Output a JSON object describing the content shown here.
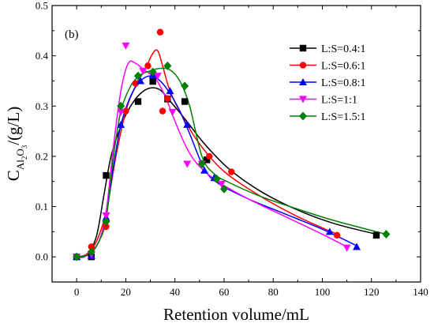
{
  "chart_data": {
    "type": "line",
    "panel_label": "(b)",
    "xlabel": "Retention volume/mL",
    "ylabel_prefix": "C",
    "ylabel_sub": "Al",
    "ylabel_sub2": "2",
    "ylabel_sub3": "O",
    "ylabel_sub4": "3",
    "ylabel_suffix": "/(g/L)",
    "xlim": [
      -10,
      140
    ],
    "ylim": [
      -0.05,
      0.5
    ],
    "xticks": [
      "0",
      "20",
      "40",
      "60",
      "80",
      "100",
      "120",
      "140"
    ],
    "yticks": [
      "0.0",
      "0.1",
      "0.2",
      "0.3",
      "0.4",
      "0.5"
    ],
    "legend_position": "top-right",
    "series": [
      {
        "name": "L:S=0.4:1",
        "color": "#000000",
        "marker": "square",
        "points": [
          [
            0,
            0.0
          ],
          [
            6,
            0.0
          ],
          [
            12,
            0.162
          ],
          [
            25,
            0.309
          ],
          [
            31,
            0.349
          ],
          [
            37,
            0.314
          ],
          [
            44,
            0.309
          ],
          [
            53,
            0.193
          ],
          [
            122,
            0.043
          ]
        ],
        "curve": [
          [
            0,
            0.0
          ],
          [
            4,
            0.003
          ],
          [
            8,
            0.04
          ],
          [
            11,
            0.12
          ],
          [
            14,
            0.2
          ],
          [
            18,
            0.26
          ],
          [
            22,
            0.3
          ],
          [
            26,
            0.325
          ],
          [
            30,
            0.336
          ],
          [
            34,
            0.332
          ],
          [
            38,
            0.31
          ],
          [
            44,
            0.275
          ],
          [
            52,
            0.225
          ],
          [
            62,
            0.175
          ],
          [
            75,
            0.13
          ],
          [
            90,
            0.093
          ],
          [
            105,
            0.066
          ],
          [
            122,
            0.045
          ]
        ]
      },
      {
        "name": "L:S=0.6:1",
        "color": "#ff0000",
        "marker": "circle",
        "points": [
          [
            0,
            0.0
          ],
          [
            6,
            0.02
          ],
          [
            12,
            0.06
          ],
          [
            20,
            0.29
          ],
          [
            24,
            0.345
          ],
          [
            29,
            0.38
          ],
          [
            34,
            0.447
          ],
          [
            35,
            0.29
          ],
          [
            37,
            0.315
          ],
          [
            54,
            0.2
          ],
          [
            63,
            0.169
          ],
          [
            106,
            0.043
          ]
        ],
        "curve": [
          [
            0,
            0.0
          ],
          [
            4,
            0.005
          ],
          [
            8,
            0.03
          ],
          [
            12,
            0.09
          ],
          [
            16,
            0.2
          ],
          [
            20,
            0.29
          ],
          [
            24,
            0.34
          ],
          [
            28,
            0.375
          ],
          [
            31,
            0.405
          ],
          [
            33,
            0.41
          ],
          [
            35,
            0.38
          ],
          [
            38,
            0.33
          ],
          [
            43,
            0.28
          ],
          [
            50,
            0.225
          ],
          [
            60,
            0.17
          ],
          [
            75,
            0.12
          ],
          [
            90,
            0.08
          ],
          [
            106,
            0.045
          ]
        ]
      },
      {
        "name": "L:S=0.8:1",
        "color": "#0000ff",
        "marker": "triangle-up",
        "points": [
          [
            0,
            0.0
          ],
          [
            6,
            0.002
          ],
          [
            12,
            0.078
          ],
          [
            18,
            0.263
          ],
          [
            26,
            0.35
          ],
          [
            31,
            0.362
          ],
          [
            38,
            0.33
          ],
          [
            45,
            0.263
          ],
          [
            52,
            0.172
          ],
          [
            56,
            0.157
          ],
          [
            103,
            0.05
          ],
          [
            114,
            0.02
          ]
        ],
        "curve": [
          [
            0,
            0.0
          ],
          [
            5,
            0.005
          ],
          [
            9,
            0.03
          ],
          [
            12,
            0.08
          ],
          [
            15,
            0.18
          ],
          [
            18,
            0.262
          ],
          [
            22,
            0.32
          ],
          [
            26,
            0.35
          ],
          [
            30,
            0.36
          ],
          [
            34,
            0.35
          ],
          [
            38,
            0.325
          ],
          [
            42,
            0.29
          ],
          [
            46,
            0.245
          ],
          [
            52,
            0.175
          ],
          [
            58,
            0.145
          ],
          [
            70,
            0.115
          ],
          [
            85,
            0.085
          ],
          [
            100,
            0.055
          ],
          [
            114,
            0.022
          ]
        ]
      },
      {
        "name": "L:S=1:1",
        "color": "#ff00ff",
        "marker": "triangle-down",
        "points": [
          [
            0,
            0.0
          ],
          [
            6,
            0.005
          ],
          [
            12,
            0.082
          ],
          [
            18,
            0.288
          ],
          [
            20,
            0.42
          ],
          [
            27,
            0.37
          ],
          [
            33,
            0.36
          ],
          [
            39,
            0.288
          ],
          [
            45,
            0.185
          ],
          [
            51,
            0.185
          ],
          [
            59,
            0.145
          ],
          [
            110,
            0.018
          ]
        ],
        "curve": [
          [
            0,
            0.0
          ],
          [
            5,
            0.004
          ],
          [
            9,
            0.03
          ],
          [
            12,
            0.09
          ],
          [
            15,
            0.22
          ],
          [
            18,
            0.33
          ],
          [
            21,
            0.385
          ],
          [
            24,
            0.385
          ],
          [
            28,
            0.37
          ],
          [
            32,
            0.355
          ],
          [
            36,
            0.32
          ],
          [
            40,
            0.27
          ],
          [
            45,
            0.215
          ],
          [
            50,
            0.18
          ],
          [
            58,
            0.148
          ],
          [
            70,
            0.115
          ],
          [
            85,
            0.08
          ],
          [
            100,
            0.045
          ],
          [
            110,
            0.02
          ]
        ]
      },
      {
        "name": "L:S=1.5:1",
        "color": "#008000",
        "marker": "diamond",
        "points": [
          [
            0,
            0.0
          ],
          [
            6,
            0.01
          ],
          [
            12,
            0.07
          ],
          [
            18,
            0.3
          ],
          [
            25,
            0.36
          ],
          [
            31,
            0.368
          ],
          [
            37,
            0.38
          ],
          [
            44,
            0.34
          ],
          [
            51,
            0.185
          ],
          [
            57,
            0.155
          ],
          [
            60,
            0.135
          ],
          [
            126,
            0.045
          ]
        ],
        "curve": [
          [
            0,
            0.0
          ],
          [
            5,
            0.005
          ],
          [
            9,
            0.03
          ],
          [
            12,
            0.075
          ],
          [
            15,
            0.2
          ],
          [
            18,
            0.29
          ],
          [
            22,
            0.34
          ],
          [
            26,
            0.362
          ],
          [
            30,
            0.37
          ],
          [
            34,
            0.375
          ],
          [
            38,
            0.372
          ],
          [
            42,
            0.35
          ],
          [
            46,
            0.3
          ],
          [
            51,
            0.2
          ],
          [
            56,
            0.165
          ],
          [
            62,
            0.148
          ],
          [
            75,
            0.12
          ],
          [
            90,
            0.095
          ],
          [
            105,
            0.072
          ],
          [
            126,
            0.045
          ]
        ]
      }
    ]
  }
}
